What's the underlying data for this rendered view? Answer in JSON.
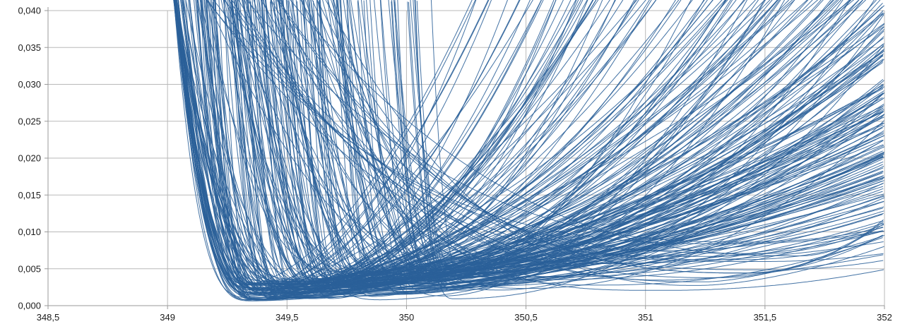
{
  "chart_data": {
    "type": "line",
    "title": "",
    "legend": "none",
    "decimal_separator": ",",
    "x_axis": {
      "tick_labels": [
        "348,5",
        "349",
        "349,5",
        "350",
        "350,5",
        "351",
        "351,5",
        "352"
      ],
      "tick_values": [
        348.5,
        349,
        349.5,
        350,
        350.5,
        351,
        351.5,
        352
      ],
      "range": [
        348.5,
        352
      ]
    },
    "y_axis": {
      "tick_labels": [
        "0,000",
        "0,005",
        "0,010",
        "0,015",
        "0,020",
        "0,025",
        "0,030",
        "0,035",
        "0,040"
      ],
      "tick_values": [
        0,
        0.005,
        0.01,
        0.015,
        0.02,
        0.025,
        0.03,
        0.035,
        0.04
      ],
      "range": [
        0,
        0.04
      ]
    },
    "grid": "both",
    "series_summary": "Ensemble of ~255 unlabeled thin blue asymmetric U-shaped curves; steep left branches plunge from the top between x=349.05 and 350.3, flat minima near y=0.0005-0.012 clustered between x=349.35 and 350.2 (a sparser set of shallower minima extends to x=351.6), and gently rising right branches fan out to cover y=0.004-0.040 at the right edge.",
    "curve_ensemble": {
      "count": 255,
      "seed": 20471,
      "far_fraction": 0.16,
      "cluster_x0_min": 349.33,
      "cluster_x0_span": 0.92,
      "cluster_x0_pow": 1.6,
      "far_x0_min": 350.25,
      "far_x0_span": 1.4,
      "far_x0_pow": 1.35,
      "ymin_base": 0.0006,
      "ymin_rand": 0.0025,
      "ymin_slope": 0.004,
      "wl_base": 0.13,
      "wl_rand": 0.55,
      "wl_pow": 1.8,
      "far_entry_min_x": 349.18,
      "far_entry_rand": 0.55,
      "left_entry_min_x": 349.03,
      "pl_min": 2.2,
      "pl_rand": 1.0,
      "wr_base": 0.9,
      "wr_rand": 3.1,
      "wr_pow": 1.2,
      "pr_min": 1.55,
      "pr_rand": 0.6,
      "top_value": 0.04
    }
  },
  "colors": {
    "series_line": "#2a6099",
    "gridline": "#b9b9b9",
    "axis_line": "#9a9a9a",
    "tick_mark": "#9a9a9a",
    "label_text": "#1c1c1c",
    "background": "#ffffff"
  }
}
